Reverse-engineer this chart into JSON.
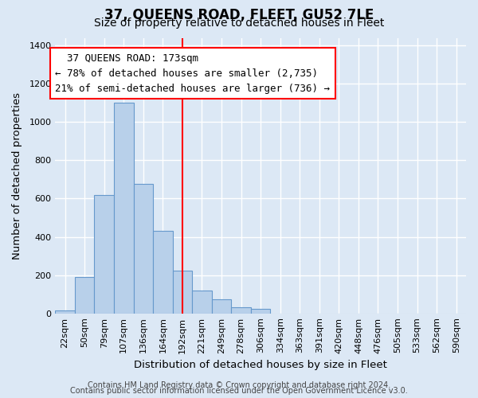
{
  "title": "37, QUEENS ROAD, FLEET, GU52 7LE",
  "subtitle": "Size of property relative to detached houses in Fleet",
  "xlabel": "Distribution of detached houses by size in Fleet",
  "ylabel": "Number of detached properties",
  "bar_labels": [
    "22sqm",
    "50sqm",
    "79sqm",
    "107sqm",
    "136sqm",
    "164sqm",
    "192sqm",
    "221sqm",
    "249sqm",
    "278sqm",
    "306sqm",
    "334sqm",
    "363sqm",
    "391sqm",
    "420sqm",
    "448sqm",
    "476sqm",
    "505sqm",
    "533sqm",
    "562sqm",
    "590sqm"
  ],
  "bar_values": [
    15,
    190,
    620,
    1100,
    675,
    430,
    225,
    120,
    75,
    30,
    25,
    0,
    0,
    0,
    0,
    0,
    0,
    0,
    0,
    0,
    0
  ],
  "bar_color": "#b8d0ea",
  "bar_edge_color": "#6699cc",
  "vline_x": 6,
  "vline_color": "red",
  "annotation_title": "37 QUEENS ROAD: 173sqm",
  "annotation_line1": "← 78% of detached houses are smaller (2,735)",
  "annotation_line2": "21% of semi-detached houses are larger (736) →",
  "annotation_box_color": "white",
  "annotation_box_edge": "red",
  "ylim": [
    0,
    1440
  ],
  "yticks": [
    0,
    200,
    400,
    600,
    800,
    1000,
    1200,
    1400
  ],
  "footer1": "Contains HM Land Registry data © Crown copyright and database right 2024.",
  "footer2": "Contains public sector information licensed under the Open Government Licence v3.0.",
  "background_color": "#dce8f5",
  "plot_bg_color": "#dce8f5",
  "grid_color": "white",
  "title_fontsize": 12,
  "subtitle_fontsize": 10,
  "label_fontsize": 9.5,
  "tick_fontsize": 8,
  "annotation_fontsize": 9,
  "footer_fontsize": 7
}
